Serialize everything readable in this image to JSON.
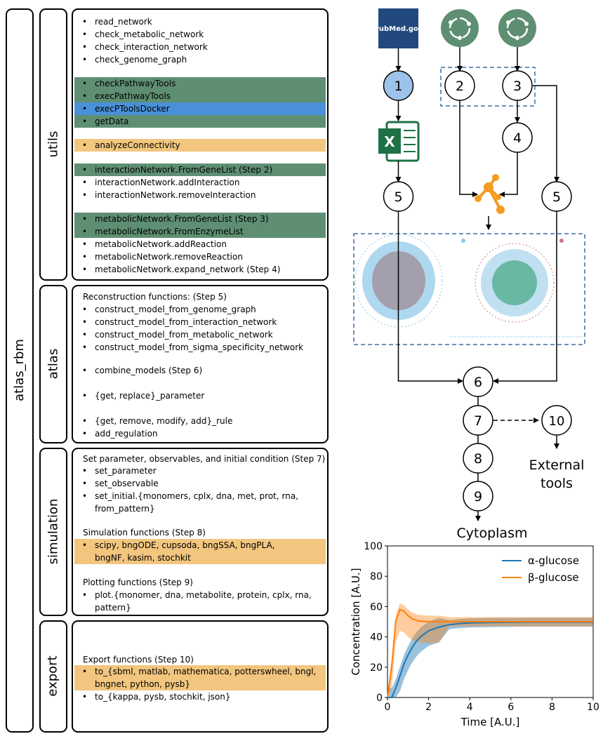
{
  "left": {
    "outer_label": "atlas_rbm",
    "sections": {
      "utils": {
        "label": "utils",
        "items": [
          "read_network",
          "check_metabolic_network",
          "check_interaction_network",
          "check_genome_graph",
          "checkPathwayTools",
          "execPathwayTools",
          "execPToolsDocker",
          "getData",
          "analyzeConnectivity",
          "interactionNetwork.FromGeneList (Step 2)",
          "interactionNetwork.addInteraction",
          "interactionNetwork.removeInteraction",
          "metabolicNetwork.FromGeneList (Step 3)",
          "metabolicNetwork.FromEnzymeList",
          "metabolicNetwork.addReaction",
          "metabolicNetwork.removeReaction",
          "metabolicNetwork.expand_network (Step 4)"
        ]
      },
      "atlas": {
        "label": "atlas",
        "header": "Reconstruction functions: (Step 5)",
        "items": [
          "construct_model_from_genome_graph",
          "construct_model_from_interaction_network",
          "construct_model_from_metabolic_network",
          "construct_model_from_sigma_specificity_network",
          "combine_models (Step 6)",
          "{get, replace}_parameter",
          "{get, remove, modify, add}_rule",
          "add_regulation"
        ]
      },
      "simulation": {
        "label": "simulation",
        "header1": "Set parameter, observables, and initial condition (Step 7)",
        "items1": [
          "set_parameter",
          "set_observable",
          "set_initial.{monomers, cplx, dna, met, prot, rna, from_pattern}"
        ],
        "header2": "Simulation functions (Step 8)",
        "items2": [
          "scipy, bngODE, cupsoda, bngSSA, bngPLA, bngNF, kasim, stochkit"
        ],
        "header3": "Plotting functions (Step 9)",
        "items3": [
          "plot.{monomer, dna, metabolite, protein, cplx, rna, pattern}"
        ]
      },
      "export": {
        "label": "export",
        "header": "Export functions (Step 10)",
        "items": [
          "to_{sbml, matlab, mathematica, potterswheel, bngl, bngnet, python, pysb}",
          "to_{kappa, pysb, stochkit, json}"
        ]
      }
    }
  },
  "flow": {
    "pubmed_logo_text": "PubMed.gov",
    "excel_letter": "X",
    "nodes": {
      "n1": "1",
      "n2": "2",
      "n3": "3",
      "n4": "4",
      "n5a": "5",
      "n5b": "5",
      "n6": "6",
      "n7": "7",
      "n8": "8",
      "n9": "9",
      "n10": "10"
    },
    "external_tools": "External tools",
    "cytoplasm": "Cytoplasm",
    "colors": {
      "green": "#5f8f73",
      "blue": "#4a90d9",
      "orange": "#f2c67e",
      "node1_fill": "#9ec3ea",
      "excel_green": "#1e7145",
      "pubmed_blue": "#21497e",
      "graph_orange": "#f39c1f",
      "dash_blue": "#3a6ea5"
    }
  },
  "chart_data": {
    "type": "line",
    "title": "",
    "xlabel": "Time [A.U.]",
    "ylabel": "Concentration [A.U.]",
    "xlim": [
      0,
      10
    ],
    "ylim": [
      0,
      100
    ],
    "xticks": [
      "0",
      "2",
      "4",
      "6",
      "8",
      "10"
    ],
    "yticks": [
      "0",
      "20",
      "40",
      "60",
      "80",
      "100"
    ],
    "legend_position": "top-right",
    "grid": false,
    "series": [
      {
        "name": "α-glucose",
        "color": "#1f77b4",
        "x": [
          0,
          0.2,
          0.4,
          0.6,
          0.8,
          1.0,
          1.2,
          1.4,
          1.6,
          1.8,
          2.0,
          2.5,
          3.0,
          3.5,
          4.0,
          5.0,
          6.0,
          7.0,
          8.0,
          9.0,
          10.0
        ],
        "y": [
          0,
          0,
          6,
          14,
          22,
          28,
          33,
          37,
          40,
          42,
          44,
          46.5,
          48,
          48.8,
          49.2,
          49.5,
          49.6,
          49.7,
          49.7,
          49.7,
          49.7
        ]
      },
      {
        "name": "β-glucose",
        "color": "#ff7f0e",
        "x": [
          0,
          0.2,
          0.4,
          0.6,
          0.8,
          1.0,
          1.2,
          1.5,
          2.0,
          2.5,
          3.0,
          4.0,
          5.0,
          6.0,
          7.0,
          8.0,
          9.0,
          10.0
        ],
        "y": [
          0,
          20,
          50,
          58,
          57,
          54,
          52,
          50.5,
          50,
          50,
          50,
          50,
          50,
          50,
          50,
          50,
          50,
          50
        ]
      }
    ]
  }
}
